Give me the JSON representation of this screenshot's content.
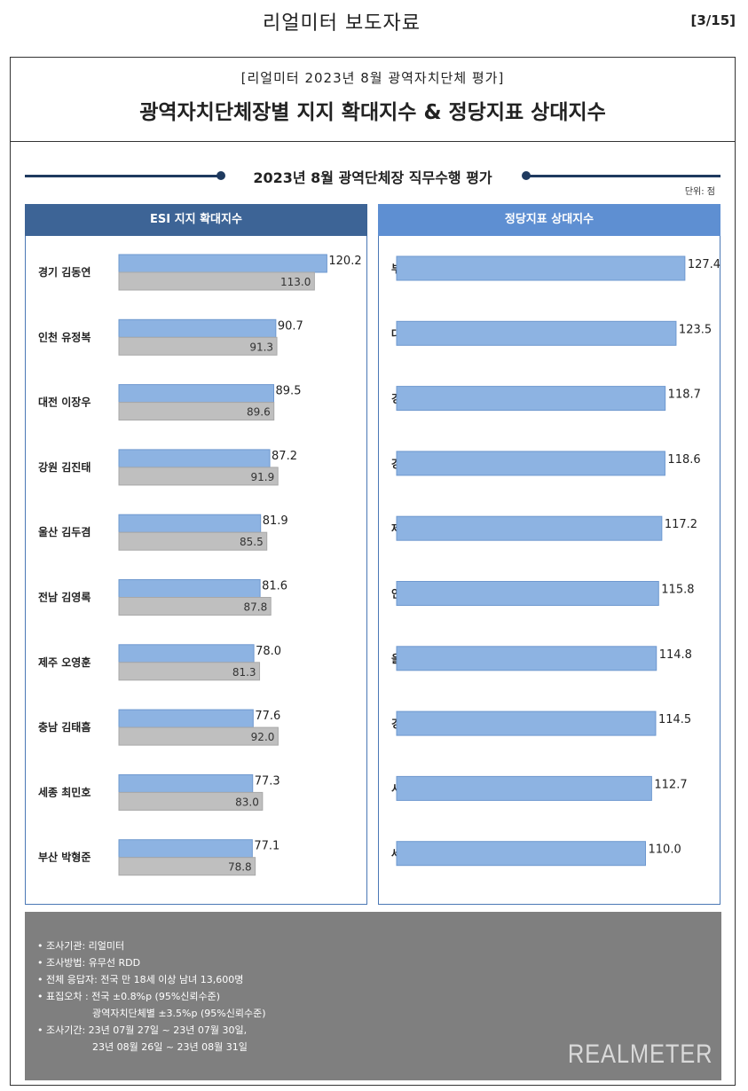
{
  "doc": {
    "title": "리얼미터 보도자료",
    "page": "[3/15]"
  },
  "header": {
    "subtitle": "[리얼미터 2023년 8월 광역자치단체 평가]",
    "title": "광역자치단체장별 지지 확대지수 & 정당지표 상대지수"
  },
  "section": {
    "title": "2023년 8월 광역단체장 직무수행 평가",
    "unit": "단위: 점"
  },
  "colors": {
    "dark_navy": "#1f3a5f",
    "panel_left": "#3d6496",
    "panel_right": "#5e8fd2",
    "bar_blue": "#8db3e2",
    "bar_gray": "#bfbfbf",
    "footer": "#7f7f7f"
  },
  "chart_data": [
    {
      "type": "bar",
      "title": "ESI 지지 확대지수",
      "categories": [
        "경기 김동연",
        "인천 유정복",
        "대전 이장우",
        "강원 김진태",
        "울산 김두겸",
        "전남 김영록",
        "제주 오영훈",
        "충남 김태흠",
        "세종 최민호",
        "부산 박형준"
      ],
      "series": [
        {
          "values": [
            120.2,
            90.7,
            89.5,
            87.2,
            81.9,
            81.6,
            78.0,
            77.6,
            77.3,
            77.1
          ]
        },
        {
          "values": [
            113.0,
            91.3,
            89.6,
            91.9,
            85.5,
            87.8,
            81.3,
            92.0,
            83.0,
            78.8
          ]
        }
      ],
      "labels": [
        [
          "120.2",
          "90.7",
          "89.5",
          "87.2",
          "81.9",
          "81.6",
          "78.0",
          "77.6",
          "77.3",
          "77.1"
        ],
        [
          "113.0",
          "91.3",
          "89.6",
          "91.9",
          "85.5",
          "87.8",
          "81.3",
          "92.0",
          "83.0",
          "78.8"
        ]
      ]
    },
    {
      "type": "bar",
      "title": "정당지표 상대지수",
      "categories": [
        "부산 박형준",
        "대전 이장우",
        "경기 김동연",
        "강원 김진태",
        "제주 오영훈",
        "인천 유정복",
        "울산 김두겸",
        "경남 박완수",
        "서울 오세훈",
        "세종 최민호"
      ],
      "series": [
        {
          "values": [
            127.4,
            123.5,
            118.7,
            118.6,
            117.2,
            115.8,
            114.8,
            114.5,
            112.7,
            110.0
          ]
        }
      ],
      "labels": [
        [
          "127.4",
          "123.5",
          "118.7",
          "118.6",
          "117.2",
          "115.8",
          "114.8",
          "114.5",
          "112.7",
          "110.0"
        ]
      ]
    }
  ],
  "footer": {
    "notes": [
      "• 조사기관: 리얼미터",
      "• 조사방법: 유무선 RDD",
      "• 전체 응답자: 전국 만 18세 이상 남녀 13,600명",
      "• 표집오차 : 전국 ±0.8%p (95%신뢰수준)",
      "광역자치단체별 ±3.5%p (95%신뢰수준)",
      "• 조사기간: 23년 07월 27일 ~ 23년 07월 30일,",
      "23년 08월 26일 ~ 23년 08월 31일"
    ],
    "brand": "REALMETER"
  }
}
